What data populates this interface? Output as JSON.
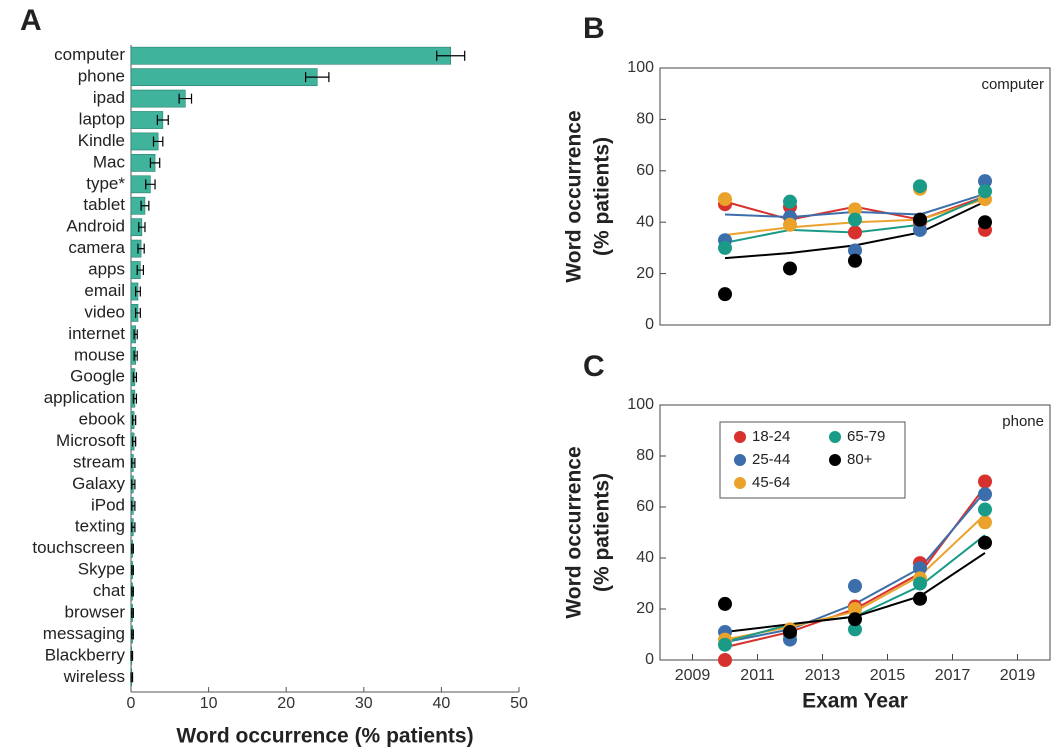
{
  "chart_data": [
    {
      "type": "hbar",
      "panel_label": "A",
      "xlabel": "Word occurrence (% patients)",
      "color": "#3fb39b",
      "categories": [
        "computer",
        "phone",
        "ipad",
        "laptop",
        "Kindle",
        "Mac",
        "type*",
        "tablet",
        "Android",
        "camera",
        "apps",
        "email",
        "video",
        "internet",
        "mouse",
        "Google",
        "application",
        "ebook",
        "Microsoft",
        "stream",
        "Galaxy",
        "iPod",
        "texting",
        "touchscreen",
        "Skype",
        "chat",
        "browser",
        "messaging",
        "Blackberry",
        "wireless"
      ],
      "values": [
        41.2,
        24.0,
        7.0,
        4.1,
        3.5,
        3.1,
        2.5,
        1.8,
        1.4,
        1.3,
        1.2,
        0.9,
        0.9,
        0.6,
        0.6,
        0.5,
        0.5,
        0.4,
        0.4,
        0.3,
        0.3,
        0.3,
        0.3,
        0.2,
        0.2,
        0.2,
        0.2,
        0.2,
        0.1,
        0.1
      ],
      "errors": [
        1.8,
        1.5,
        0.8,
        0.7,
        0.6,
        0.6,
        0.6,
        0.5,
        0.4,
        0.4,
        0.4,
        0.3,
        0.3,
        0.2,
        0.2,
        0.2,
        0.2,
        0.2,
        0.2,
        0.2,
        0.2,
        0.2,
        0.2,
        0.1,
        0.1,
        0.1,
        0.1,
        0.1,
        0.1,
        0.1
      ],
      "xlim": [
        0,
        50
      ],
      "xticks": [
        0,
        10,
        20,
        30,
        40,
        50
      ]
    },
    {
      "type": "scatter",
      "panel_label": "B",
      "annotation": "computer",
      "ylabel": [
        "Word occurrence",
        "(% patients)"
      ],
      "x": [
        2010,
        2012,
        2014,
        2016,
        2018
      ],
      "xlim": [
        2008,
        2020
      ],
      "ylim": [
        0,
        100
      ],
      "yticks": [
        0,
        20,
        40,
        60,
        80,
        100
      ],
      "series": [
        {
          "color": "#d7312e",
          "values": [
            47,
            46,
            36,
            40,
            37
          ],
          "fit": [
            48,
            41,
            46,
            41,
            50
          ]
        },
        {
          "color": "#3b6eaa",
          "values": [
            33,
            42,
            29,
            37,
            56
          ],
          "fit": [
            43,
            42,
            44,
            43,
            51
          ]
        },
        {
          "color": "#eaa22b",
          "values": [
            49,
            39,
            45,
            53,
            49
          ],
          "fit": [
            35,
            38,
            40,
            41,
            49
          ]
        },
        {
          "color": "#1a9b87",
          "values": [
            30,
            48,
            41,
            54,
            52
          ],
          "fit": [
            32,
            37,
            36,
            39,
            50
          ]
        },
        {
          "color": "#000000",
          "values": [
            12,
            22,
            25,
            41,
            40
          ],
          "fit": [
            26,
            28,
            31,
            36,
            48
          ]
        }
      ]
    },
    {
      "type": "scatter",
      "panel_label": "C",
      "annotation": "phone",
      "ylabel": [
        "Word occurrence",
        "(% patients)"
      ],
      "xlabel": "Exam Year",
      "x": [
        2010,
        2012,
        2014,
        2016,
        2018
      ],
      "xlim": [
        2008,
        2020
      ],
      "xticks": [
        2009,
        2011,
        2013,
        2015,
        2017,
        2019
      ],
      "ylim": [
        0,
        100
      ],
      "yticks": [
        0,
        20,
        40,
        60,
        80,
        100
      ],
      "legend": "upper left",
      "series": [
        {
          "name": "18-24",
          "color": "#d7312e",
          "values": [
            0,
            10,
            21,
            38,
            70
          ],
          "fit": [
            5,
            11,
            20,
            34,
            68
          ]
        },
        {
          "name": "25-44",
          "color": "#3b6eaa",
          "values": [
            11,
            8,
            29,
            36,
            65
          ],
          "fit": [
            7,
            12,
            22,
            36,
            66
          ]
        },
        {
          "name": "45-64",
          "color": "#eaa22b",
          "values": [
            8,
            12,
            20,
            32,
            54
          ],
          "fit": [
            8,
            13,
            19,
            33,
            57
          ]
        },
        {
          "name": "65-79",
          "color": "#1a9b87",
          "values": [
            6,
            11,
            12,
            30,
            59
          ],
          "fit": [
            7,
            14,
            17,
            29,
            49
          ]
        },
        {
          "name": "80+",
          "color": "#000000",
          "values": [
            22,
            11,
            16,
            24,
            46
          ],
          "fit": [
            11,
            14,
            17,
            25,
            42
          ]
        }
      ]
    }
  ]
}
